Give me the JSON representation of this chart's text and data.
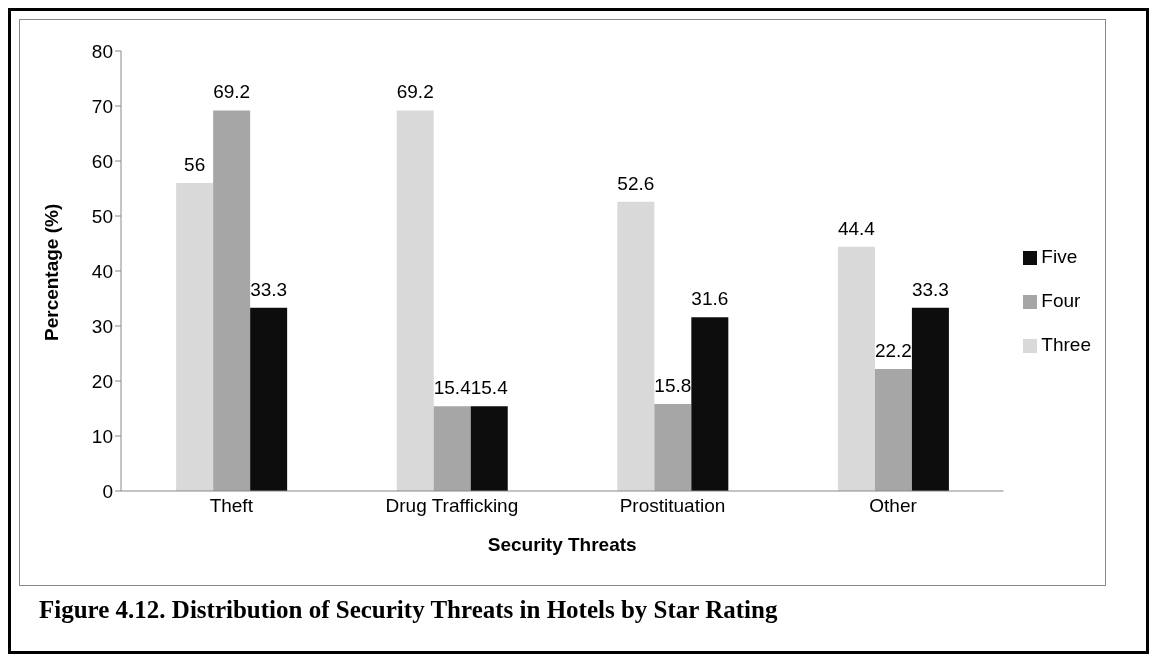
{
  "chart_data": {
    "type": "bar",
    "xlabel": "Security Threats",
    "ylabel": "Percentage (%)",
    "categories": [
      "Theft",
      "Drug Trafficking",
      "Prostituation",
      "Other"
    ],
    "series": [
      {
        "name": "Three",
        "color": "#d9d9d9",
        "values": [
          56,
          69.2,
          52.6,
          44.4
        ]
      },
      {
        "name": "Four",
        "color": "#a6a6a6",
        "values": [
          69.2,
          15.4,
          15.8,
          22.2
        ]
      },
      {
        "name": "Five",
        "color": "#0d0d0d",
        "values": [
          33.3,
          15.4,
          31.6,
          33.3
        ]
      }
    ],
    "ylim": [
      0,
      80
    ],
    "yticks": [
      0,
      10,
      20,
      30,
      40,
      50,
      60,
      70,
      80
    ],
    "grid": false,
    "legend": "right",
    "data_labels": true,
    "annotations": [
      "Figure 4.12. Distribution of Security Threats in Hotels by Star Rating"
    ]
  }
}
